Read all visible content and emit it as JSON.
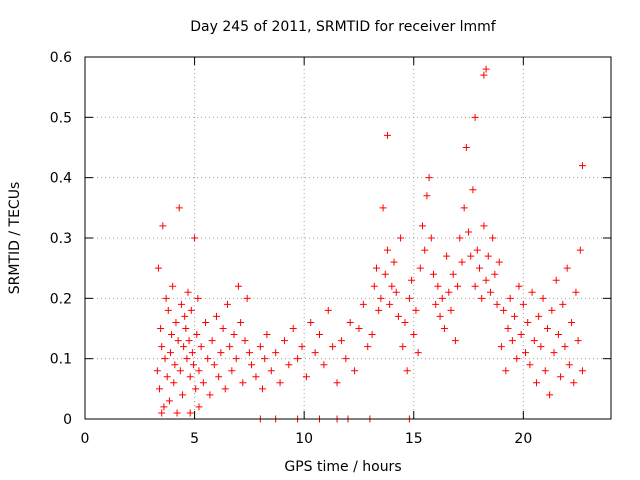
{
  "chart_data": {
    "type": "scatter",
    "title": "Day 245 of 2011, SRMTID for receiver lmmf",
    "xlabel": "GPS time / hours",
    "ylabel": "SRMTID / TECUs",
    "xlim": [
      0,
      24
    ],
    "ylim": [
      0,
      0.6
    ],
    "xticks": [
      0,
      5,
      10,
      15,
      20
    ],
    "yticks": [
      0,
      0.1,
      0.2,
      0.3,
      0.4,
      0.5,
      0.6
    ],
    "xtick_labels": [
      "0",
      "5",
      "10",
      "15",
      "20"
    ],
    "ytick_labels": [
      "0",
      "0.1",
      "0.2",
      "0.3",
      "0.4",
      "0.5",
      "0.6"
    ],
    "grid": true,
    "marker": "+",
    "color": "#ff0000",
    "series": [
      {
        "name": "SRMTID",
        "x": [
          3.3,
          3.35,
          3.4,
          3.45,
          3.5,
          3.55,
          3.6,
          3.65,
          3.7,
          3.75,
          3.8,
          3.85,
          3.9,
          3.95,
          4.0,
          4.05,
          4.1,
          4.15,
          4.2,
          4.25,
          4.3,
          4.35,
          4.4,
          4.45,
          4.5,
          4.55,
          4.6,
          4.65,
          4.7,
          4.75,
          4.8,
          4.85,
          4.9,
          4.95,
          5.0,
          5.05,
          5.1,
          5.15,
          5.2,
          5.3,
          5.4,
          5.5,
          5.6,
          5.7,
          5.8,
          5.9,
          6.0,
          6.1,
          6.2,
          6.3,
          6.4,
          6.5,
          6.6,
          6.7,
          6.8,
          6.9,
          7.0,
          7.1,
          7.2,
          7.3,
          7.4,
          7.5,
          7.6,
          7.8,
          8.0,
          8.1,
          8.2,
          8.3,
          8.5,
          8.7,
          8.9,
          9.1,
          9.3,
          9.5,
          9.7,
          9.9,
          10.1,
          10.3,
          10.5,
          10.7,
          10.9,
          11.1,
          11.3,
          11.5,
          11.7,
          11.9,
          12.1,
          12.3,
          12.5,
          12.7,
          12.9,
          13.1,
          13.2,
          13.3,
          13.4,
          13.5,
          13.6,
          13.7,
          13.8,
          13.9,
          14.0,
          14.1,
          14.2,
          14.3,
          14.4,
          14.5,
          14.6,
          14.7,
          14.8,
          14.9,
          15.0,
          15.1,
          15.2,
          15.3,
          15.4,
          15.5,
          15.6,
          15.7,
          15.8,
          15.9,
          16.0,
          16.1,
          16.2,
          16.3,
          16.4,
          16.5,
          16.6,
          16.7,
          16.8,
          16.9,
          17.0,
          17.1,
          17.2,
          17.3,
          17.4,
          17.5,
          17.6,
          17.7,
          17.8,
          17.9,
          18.0,
          18.1,
          18.2,
          18.3,
          18.4,
          18.5,
          18.6,
          18.7,
          18.8,
          18.9,
          19.0,
          19.1,
          19.2,
          19.3,
          19.4,
          19.5,
          19.6,
          19.7,
          19.8,
          19.9,
          20.0,
          20.1,
          20.2,
          20.3,
          20.4,
          20.5,
          20.6,
          20.7,
          20.8,
          20.9,
          21.0,
          21.1,
          21.2,
          21.3,
          21.4,
          21.5,
          21.6,
          21.7,
          21.8,
          21.9,
          22.0,
          22.1,
          22.2,
          22.3,
          22.4,
          22.5,
          22.6,
          22.7,
          8.0,
          8.7,
          9.7,
          10.7,
          11.5,
          12.0,
          13.0,
          14.8,
          3.5,
          4.8,
          5.2,
          13.8,
          18.2,
          18.3,
          17.8,
          22.7
        ],
        "y": [
          0.08,
          0.25,
          0.05,
          0.15,
          0.12,
          0.32,
          0.02,
          0.1,
          0.2,
          0.07,
          0.18,
          0.03,
          0.11,
          0.14,
          0.22,
          0.06,
          0.09,
          0.16,
          0.01,
          0.13,
          0.35,
          0.08,
          0.19,
          0.04,
          0.12,
          0.17,
          0.15,
          0.1,
          0.21,
          0.13,
          0.07,
          0.18,
          0.11,
          0.09,
          0.3,
          0.05,
          0.14,
          0.2,
          0.08,
          0.12,
          0.06,
          0.16,
          0.1,
          0.04,
          0.13,
          0.09,
          0.17,
          0.07,
          0.11,
          0.15,
          0.05,
          0.19,
          0.12,
          0.08,
          0.14,
          0.1,
          0.22,
          0.16,
          0.06,
          0.13,
          0.2,
          0.11,
          0.09,
          0.07,
          0.12,
          0.05,
          0.1,
          0.14,
          0.08,
          0.11,
          0.06,
          0.13,
          0.09,
          0.15,
          0.1,
          0.12,
          0.07,
          0.16,
          0.11,
          0.14,
          0.09,
          0.18,
          0.12,
          0.06,
          0.13,
          0.1,
          0.16,
          0.08,
          0.15,
          0.19,
          0.12,
          0.14,
          0.22,
          0.25,
          0.18,
          0.2,
          0.35,
          0.24,
          0.28,
          0.19,
          0.22,
          0.26,
          0.21,
          0.17,
          0.3,
          0.12,
          0.16,
          0.08,
          0.2,
          0.23,
          0.14,
          0.18,
          0.11,
          0.25,
          0.32,
          0.28,
          0.37,
          0.4,
          0.3,
          0.24,
          0.19,
          0.22,
          0.17,
          0.2,
          0.15,
          0.27,
          0.21,
          0.18,
          0.24,
          0.13,
          0.22,
          0.3,
          0.26,
          0.35,
          0.45,
          0.31,
          0.27,
          0.38,
          0.22,
          0.28,
          0.25,
          0.2,
          0.32,
          0.23,
          0.27,
          0.21,
          0.3,
          0.24,
          0.19,
          0.26,
          0.12,
          0.18,
          0.08,
          0.15,
          0.2,
          0.13,
          0.17,
          0.1,
          0.22,
          0.14,
          0.19,
          0.11,
          0.16,
          0.09,
          0.21,
          0.13,
          0.06,
          0.17,
          0.12,
          0.2,
          0.08,
          0.15,
          0.04,
          0.18,
          0.11,
          0.23,
          0.14,
          0.07,
          0.19,
          0.12,
          0.25,
          0.09,
          0.16,
          0.06,
          0.21,
          0.13,
          0.28,
          0.08,
          0.0,
          0.0,
          0.0,
          0.0,
          0.0,
          0.0,
          0.0,
          0.0,
          0.01,
          0.01,
          0.02,
          0.47,
          0.57,
          0.58,
          0.5,
          0.42
        ]
      }
    ]
  }
}
